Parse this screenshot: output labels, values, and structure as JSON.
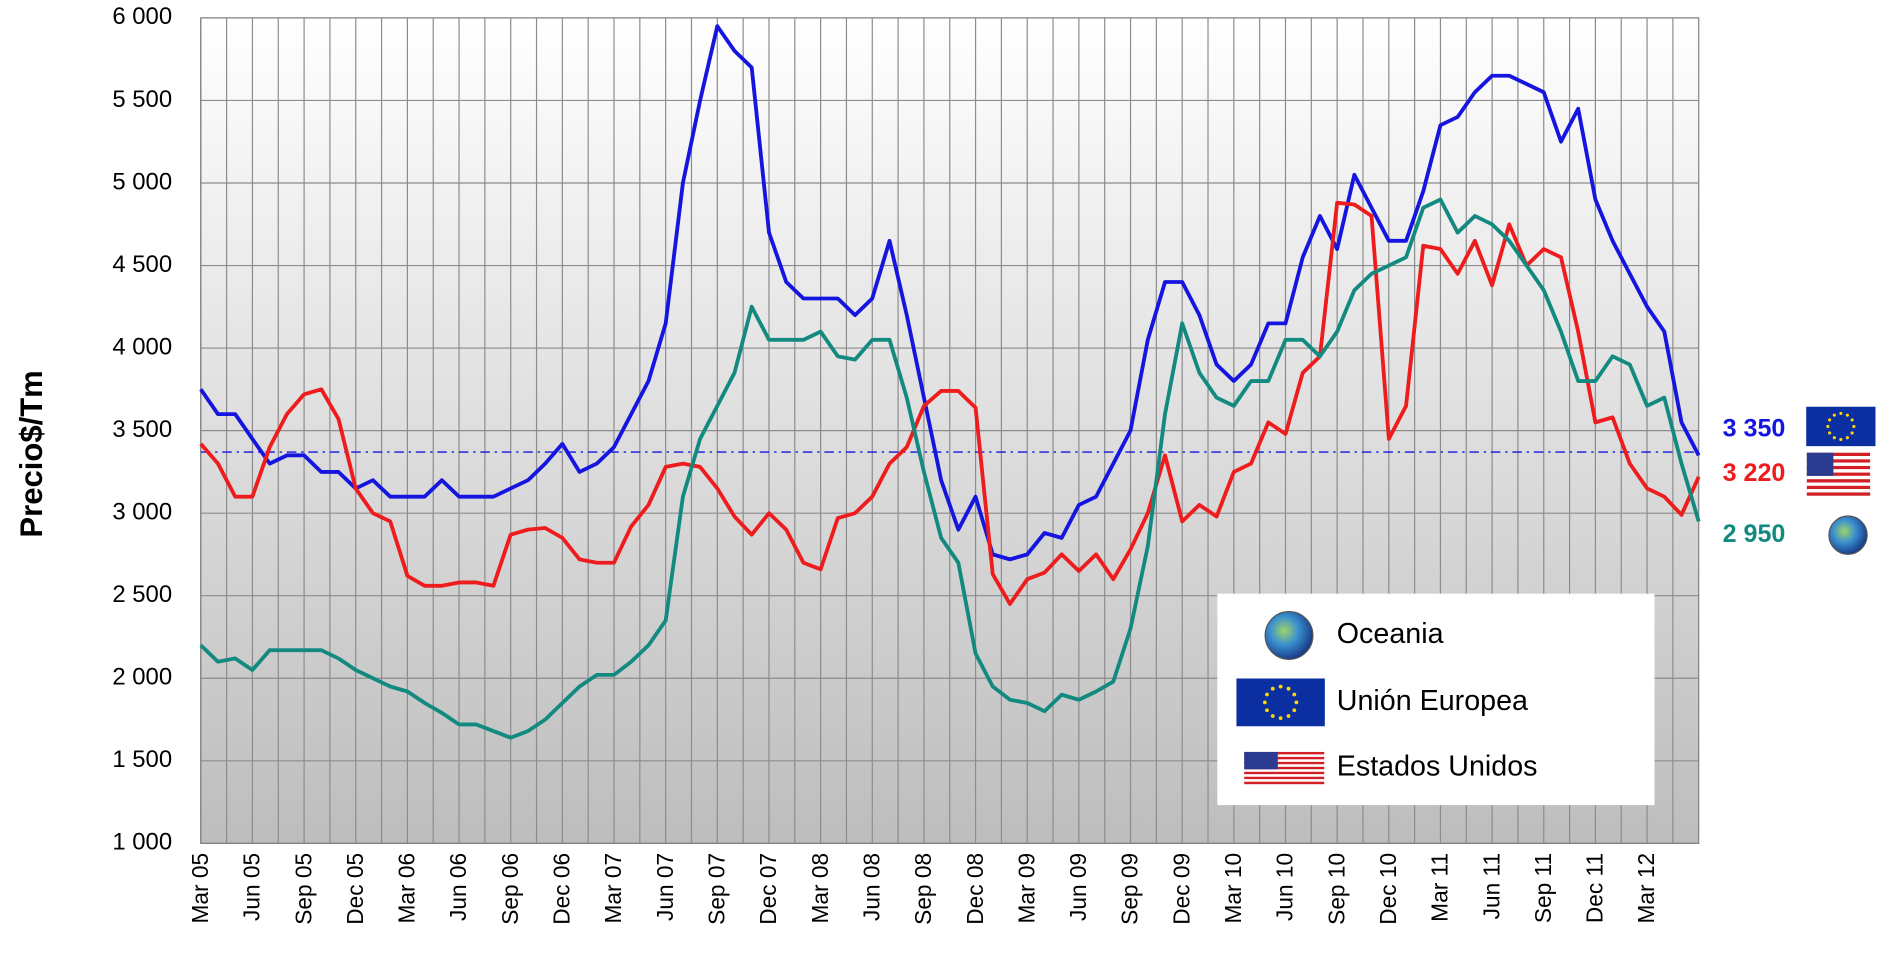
{
  "chart_data": {
    "type": "line",
    "y_label": "Precio$/Tm",
    "categories": [
      "Mar 05",
      null,
      null,
      "Jun 05",
      null,
      null,
      "Sep 05",
      null,
      null,
      "Dec 05",
      null,
      null,
      "Mar 06",
      null,
      null,
      "Jun 06",
      null,
      null,
      "Sep 06",
      null,
      null,
      "Dec 06",
      null,
      null,
      "Mar 07",
      null,
      null,
      "Jun 07",
      null,
      null,
      "Sep 07",
      null,
      null,
      "Dec 07",
      null,
      null,
      "Mar 08",
      null,
      null,
      "Jun 08",
      null,
      null,
      "Sep 08",
      null,
      null,
      "Dec 08",
      null,
      null,
      "Mar 09",
      null,
      null,
      "Jun 09",
      null,
      null,
      "Sep 09",
      null,
      null,
      "Dec 09",
      null,
      null,
      "Mar 10",
      null,
      null,
      "Jun 10",
      null,
      null,
      "Sep 10",
      null,
      null,
      "Dec 10",
      null,
      null,
      "Mar 11",
      null,
      null,
      "Jun 11",
      null,
      null,
      "Sep 11",
      null,
      null,
      "Dec 11",
      null,
      null,
      "Mar 12",
      null,
      null,
      null
    ],
    "series": [
      {
        "name": "Oceania",
        "color": "#138a80",
        "end_label": {
          "value": 2950,
          "label": "2 950"
        },
        "values": [
          2200,
          2100,
          2120,
          2050,
          2170,
          2170,
          2170,
          2170,
          2120,
          2050,
          2000,
          1950,
          1920,
          1850,
          1790,
          1720,
          1720,
          1680,
          1640,
          1680,
          1750,
          1850,
          1950,
          2020,
          2020,
          2100,
          2200,
          2350,
          3100,
          3450,
          3650,
          3850,
          4250,
          4050,
          4050,
          4050,
          4100,
          3950,
          3930,
          4050,
          4050,
          3700,
          3250,
          2850,
          2700,
          2150,
          1950,
          1870,
          1850,
          1800,
          1900,
          1870,
          1920,
          1980,
          2300,
          2800,
          3600,
          4150,
          3850,
          3700,
          3650,
          3800,
          3800,
          4050,
          4050,
          3950,
          4100,
          4350,
          4450,
          4500,
          4550,
          4850,
          4900,
          4700,
          4800,
          4750,
          4650,
          4500,
          4350,
          4100,
          3800,
          3800,
          3950,
          3900,
          3650,
          3700,
          3300,
          2950
        ]
      },
      {
        "name": "Unión Europea",
        "color": "#1515e0",
        "end_label": {
          "value": 3350,
          "label": "3 350"
        },
        "values": [
          3750,
          3600,
          3600,
          3450,
          3300,
          3350,
          3350,
          3250,
          3250,
          3150,
          3200,
          3100,
          3100,
          3100,
          3200,
          3100,
          3100,
          3100,
          3150,
          3200,
          3300,
          3420,
          3250,
          3300,
          3400,
          3600,
          3800,
          4150,
          5000,
          5500,
          5950,
          5800,
          5700,
          4700,
          4400,
          4300,
          4300,
          4300,
          4200,
          4300,
          4650,
          4200,
          3700,
          3200,
          2900,
          3100,
          2750,
          2720,
          2750,
          2880,
          2850,
          3050,
          3100,
          3300,
          3500,
          4050,
          4400,
          4400,
          4200,
          3900,
          3800,
          3900,
          4150,
          4150,
          4550,
          4800,
          4600,
          5050,
          4850,
          4650,
          4650,
          4950,
          5350,
          5400,
          5550,
          5650,
          5650,
          5600,
          5550,
          5250,
          5450,
          4900,
          4650,
          4450,
          4250,
          4100,
          3550,
          3350
        ]
      },
      {
        "name": "Estados Unidos",
        "color": "#ee1c1c",
        "end_label": {
          "value": 3220,
          "label": "3 220"
        },
        "values": [
          3420,
          3300,
          3100,
          3100,
          3400,
          3600,
          3720,
          3750,
          3570,
          3150,
          3000,
          2950,
          2620,
          2560,
          2560,
          2580,
          2580,
          2560,
          2870,
          2900,
          2910,
          2850,
          2720,
          2700,
          2700,
          2920,
          3050,
          3280,
          3300,
          3280,
          3150,
          2980,
          2870,
          3000,
          2900,
          2700,
          2660,
          2970,
          3000,
          3100,
          3300,
          3400,
          3650,
          3740,
          3740,
          3640,
          2630,
          2450,
          2600,
          2640,
          2750,
          2650,
          2750,
          2600,
          2780,
          3000,
          3350,
          2950,
          3050,
          2980,
          3250,
          3300,
          3550,
          3480,
          3850,
          3950,
          4880,
          4870,
          4800,
          3450,
          3650,
          4620,
          4600,
          4450,
          4650,
          4380,
          4750,
          4500,
          4600,
          4550,
          4100,
          3550,
          3580,
          3300,
          3150,
          3100,
          2990,
          3220
        ]
      }
    ],
    "reference_line": {
      "value": 3370,
      "color": "#1515e0"
    },
    "ylim": [
      1000,
      6000
    ],
    "yticks": [
      {
        "value": 1000,
        "label": "1 000"
      },
      {
        "value": 1500,
        "label": "1 500"
      },
      {
        "value": 2000,
        "label": "2 000"
      },
      {
        "value": 2500,
        "label": "2 500"
      },
      {
        "value": 3000,
        "label": "3 000"
      },
      {
        "value": 3500,
        "label": "3 500"
      },
      {
        "value": 4000,
        "label": "4 000"
      },
      {
        "value": 4500,
        "label": "4 500"
      },
      {
        "value": 5000,
        "label": "5 000"
      },
      {
        "value": 5500,
        "label": "5 500"
      },
      {
        "value": 6000,
        "label": "6 000"
      }
    ],
    "grid": true
  }
}
